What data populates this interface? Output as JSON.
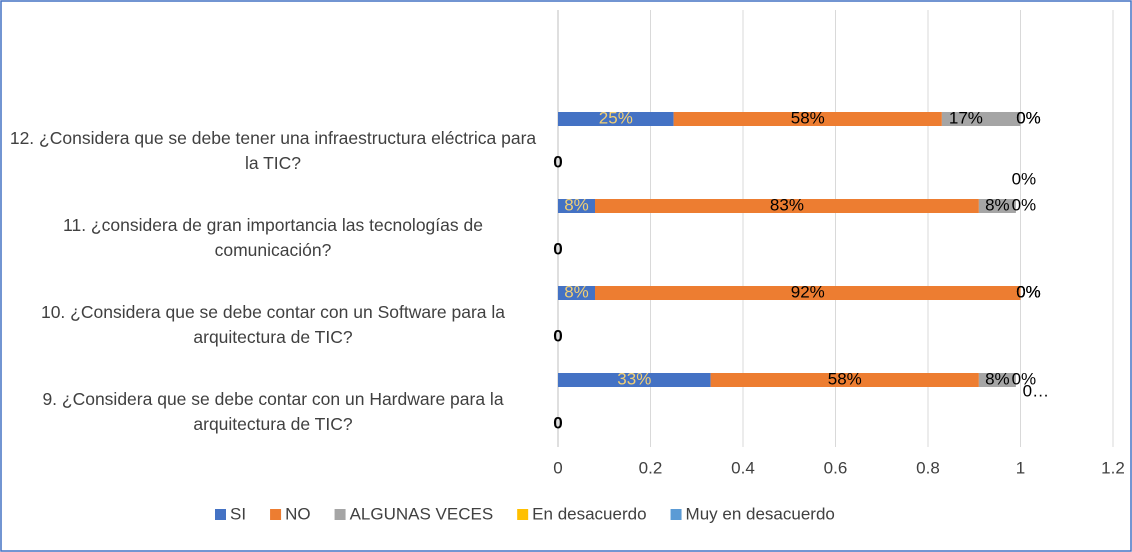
{
  "chart_data": {
    "type": "stacked_bar_horizontal",
    "categories": [
      "9. ¿Considera que se debe contar con un Hardware para la arquitectura de TIC?",
      "10. ¿Considera que se debe contar con un Software para la arquitectura de TIC?",
      "11. ¿considera de gran importancia las tecnologías de comunicación?",
      "12. ¿Considera que se debe tener una infraestructura eléctrica para la TIC?"
    ],
    "series": [
      {
        "name": "SI",
        "color": "#4472c4",
        "values": [
          0.33,
          0.08,
          0.08,
          0.25
        ],
        "value_labels": [
          "33%",
          "8%",
          "8%",
          "25%"
        ]
      },
      {
        "name": "NO",
        "color": "#ed7d31",
        "values": [
          0.58,
          0.92,
          0.83,
          0.58
        ],
        "value_labels": [
          "58%",
          "92%",
          "83%",
          "58%"
        ]
      },
      {
        "name": "ALGUNAS VECES",
        "color": "#a5a5a5",
        "values": [
          0.08,
          0,
          0.08,
          0.17
        ],
        "value_labels": [
          "8%",
          "0%",
          "8%",
          "17%"
        ]
      },
      {
        "name": "En desacuerdo",
        "color": "#ffc000",
        "values": [
          0,
          0,
          0,
          0
        ],
        "value_labels": [
          "0%",
          "0%",
          "0%",
          "0%"
        ]
      },
      {
        "name": "Muy en desacuerdo",
        "color": "#5b9bd5",
        "values": [
          0,
          0,
          0,
          0
        ],
        "value_labels": [
          "0…",
          "0%",
          "0%",
          "0%"
        ]
      }
    ],
    "other_values": [
      0,
      0,
      0,
      0
    ],
    "xlim": [
      0,
      1.2
    ],
    "xticks": [
      0,
      0.2,
      0.4,
      0.6,
      0.8,
      1,
      1.2
    ],
    "grid": true,
    "legend": "bottom"
  }
}
